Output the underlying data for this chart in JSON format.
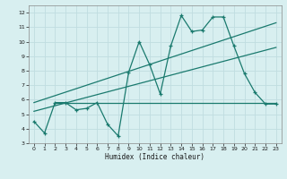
{
  "zigzag_x": [
    0,
    1,
    2,
    3,
    4,
    5,
    6,
    7,
    8,
    9,
    10,
    11,
    12,
    13,
    14,
    15,
    16,
    17,
    18,
    19,
    20,
    21,
    22,
    23
  ],
  "zigzag_y": [
    4.5,
    3.7,
    5.8,
    5.8,
    5.3,
    5.4,
    5.8,
    4.3,
    3.5,
    7.9,
    10.0,
    8.4,
    6.4,
    9.7,
    11.8,
    10.7,
    10.8,
    11.7,
    11.7,
    9.7,
    7.8,
    6.5,
    5.7,
    5.7
  ],
  "trend1_x": [
    0,
    23
  ],
  "trend1_y": [
    5.2,
    9.6
  ],
  "trend2_x": [
    0,
    23
  ],
  "trend2_y": [
    5.8,
    11.3
  ],
  "hline_y": 5.75,
  "hline_x_start": 2,
  "hline_x_end": 23,
  "line_color": "#1a7a6e",
  "bg_color": "#d8eff0",
  "grid_color": "#c0dde0",
  "xlabel": "Humidex (Indice chaleur)",
  "xlim": [
    -0.5,
    23.5
  ],
  "ylim": [
    3,
    12.5
  ],
  "yticks": [
    3,
    4,
    5,
    6,
    7,
    8,
    9,
    10,
    11,
    12
  ],
  "xticks": [
    0,
    1,
    2,
    3,
    4,
    5,
    6,
    7,
    8,
    9,
    10,
    11,
    12,
    13,
    14,
    15,
    16,
    17,
    18,
    19,
    20,
    21,
    22,
    23
  ],
  "marker": "+"
}
